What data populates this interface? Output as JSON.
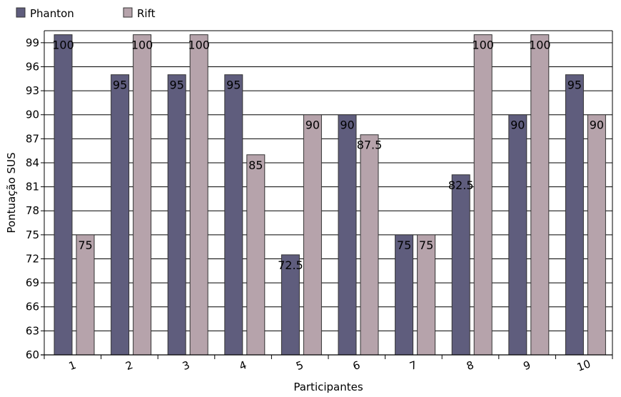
{
  "chart_data": {
    "type": "bar",
    "xlabel": "Participantes",
    "ylabel": "Pontuação SUS",
    "ylim": [
      60,
      100.5
    ],
    "yticks": [
      60,
      63,
      66,
      69,
      72,
      75,
      78,
      81,
      84,
      87,
      90,
      93,
      96,
      99
    ],
    "categories": [
      "1",
      "2",
      "3",
      "4",
      "5",
      "6",
      "7",
      "8",
      "9",
      "10"
    ],
    "grid": "horizontal",
    "legend_position": "top-left",
    "series": [
      {
        "name": "Phanton",
        "color": "#5f5d7d",
        "values": [
          100,
          95,
          95,
          95,
          72.5,
          90,
          75,
          82.5,
          90,
          95
        ]
      },
      {
        "name": "Rift",
        "color": "#b6a3ab",
        "values": [
          75,
          100,
          100,
          85,
          90,
          87.5,
          75,
          100,
          100,
          90
        ]
      }
    ]
  }
}
